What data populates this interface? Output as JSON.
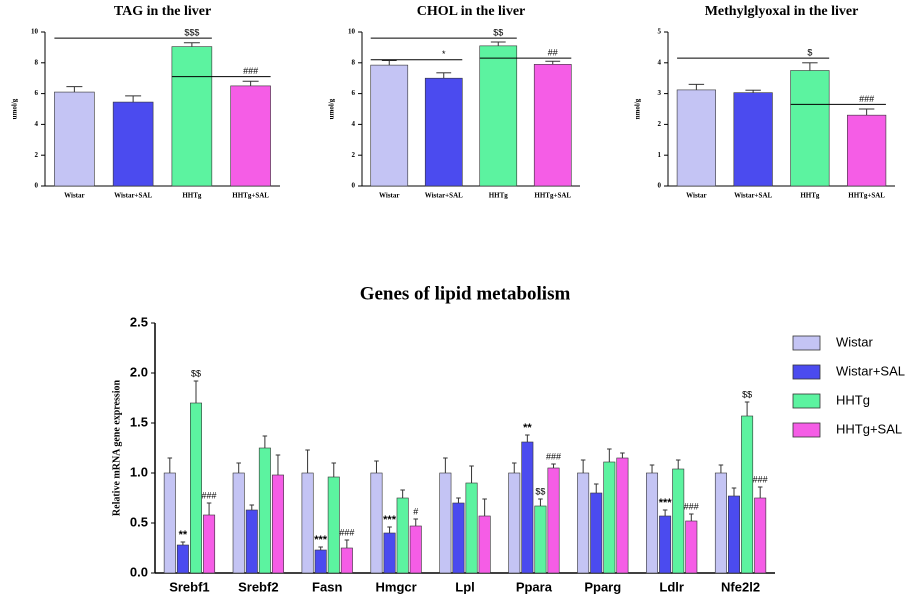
{
  "chart_data": [
    {
      "type": "bar",
      "title": "TAG in the liver",
      "ylabel": "umol/g",
      "categories": [
        "Wistar",
        "Wistar+SAL",
        "HHTg",
        "HHTg+SAL"
      ],
      "values": [
        6.1,
        5.45,
        9.05,
        6.5
      ],
      "errors": [
        0.35,
        0.4,
        0.25,
        0.3
      ],
      "colors": [
        "#c4c4f4",
        "#4b4bef",
        "#5cf3a0",
        "#f55de6"
      ],
      "ylim": [
        0,
        10
      ],
      "yticks": [
        0,
        2,
        4,
        6,
        8,
        10
      ],
      "annotations": [
        {
          "text": "$$$",
          "from": 0,
          "to": 2,
          "y": 9.6
        },
        {
          "text": "###",
          "from": 2,
          "to": 3,
          "y": 7.1
        }
      ]
    },
    {
      "type": "bar",
      "title": "CHOL in the liver",
      "ylabel": "umol/g",
      "categories": [
        "Wistar",
        "Wistar+SAL",
        "HHTg",
        "HHTg+SAL"
      ],
      "values": [
        7.85,
        7.0,
        9.1,
        7.9
      ],
      "errors": [
        0.3,
        0.35,
        0.25,
        0.2
      ],
      "colors": [
        "#c4c4f4",
        "#4b4bef",
        "#5cf3a0",
        "#f55de6"
      ],
      "ylim": [
        0,
        10
      ],
      "yticks": [
        0,
        2,
        4,
        6,
        8,
        10
      ],
      "annotations": [
        {
          "text": "$$",
          "from": 0,
          "to": 2,
          "y": 9.6
        },
        {
          "text": "*",
          "from": 0,
          "to": 1,
          "y": 8.2
        },
        {
          "text": "##",
          "from": 2,
          "to": 3,
          "y": 8.3
        }
      ]
    },
    {
      "type": "bar",
      "title": "Methylglyoxal in the liver",
      "ylabel": "nmol/g",
      "categories": [
        "Wistar",
        "Wistar+SAL",
        "HHTg",
        "HHTg+SAL"
      ],
      "values": [
        3.12,
        3.03,
        3.75,
        2.3
      ],
      "errors": [
        0.18,
        0.08,
        0.25,
        0.2
      ],
      "colors": [
        "#c4c4f4",
        "#4b4bef",
        "#5cf3a0",
        "#f55de6"
      ],
      "ylim": [
        0,
        5
      ],
      "yticks": [
        0,
        1,
        2,
        3,
        4,
        5
      ],
      "annotations": [
        {
          "text": "$",
          "from": 0,
          "to": 2,
          "y": 4.15
        },
        {
          "text": "###",
          "from": 2,
          "to": 3,
          "y": 2.65
        }
      ]
    },
    {
      "type": "grouped_bar",
      "title": "Genes of lipid metabolism",
      "ylabel": "Relative mRNA gene expression",
      "categories": [
        "Srebf1",
        "Srebf2",
        "Fasn",
        "Hmgcr",
        "Lpl",
        "Ppara",
        "Pparg",
        "Ldlr",
        "Nfe2l2"
      ],
      "ylim": [
        0,
        2.5
      ],
      "yticks": [
        {
          "value": 0,
          "label": "0.0"
        },
        0.5,
        {
          "value": 1,
          "label": "1.0"
        },
        1.5,
        {
          "value": 2,
          "label": "2.0"
        },
        2.5
      ],
      "legend": "right",
      "series": [
        {
          "name": "Wistar",
          "color": "#c4c4f4",
          "values": [
            1.0,
            1.0,
            1.0,
            1.0,
            1.0,
            1.0,
            1.0,
            1.0,
            1.0
          ],
          "errors": [
            0.15,
            0.1,
            0.23,
            0.12,
            0.15,
            0.1,
            0.13,
            0.08,
            0.08
          ],
          "markers": [
            null,
            null,
            null,
            null,
            null,
            null,
            null,
            null,
            null
          ]
        },
        {
          "name": "Wistar+SAL",
          "color": "#4b4bef",
          "values": [
            0.28,
            0.63,
            0.23,
            0.4,
            0.7,
            1.31,
            0.8,
            0.57,
            0.77
          ],
          "errors": [
            0.03,
            0.05,
            0.03,
            0.06,
            0.05,
            0.07,
            0.09,
            0.06,
            0.08
          ],
          "markers": [
            "**",
            null,
            "***",
            "***",
            null,
            "**",
            null,
            "***",
            null
          ]
        },
        {
          "name": "HHTg",
          "color": "#5cf3a0",
          "values": [
            1.7,
            1.25,
            0.96,
            0.75,
            0.9,
            0.67,
            1.11,
            1.04,
            1.57
          ],
          "errors": [
            0.22,
            0.12,
            0.14,
            0.08,
            0.17,
            0.07,
            0.13,
            0.09,
            0.14
          ],
          "markers": [
            "$$",
            null,
            null,
            null,
            null,
            "$$",
            null,
            null,
            "$$"
          ]
        },
        {
          "name": "HHTg+SAL",
          "color": "#f55de6",
          "values": [
            0.58,
            0.98,
            0.25,
            0.47,
            0.57,
            1.05,
            1.15,
            0.52,
            0.75
          ],
          "errors": [
            0.12,
            0.2,
            0.08,
            0.07,
            0.17,
            0.04,
            0.05,
            0.07,
            0.11
          ],
          "markers": [
            "###",
            null,
            "###",
            "#",
            null,
            "###",
            null,
            "###",
            "###"
          ]
        }
      ]
    }
  ]
}
